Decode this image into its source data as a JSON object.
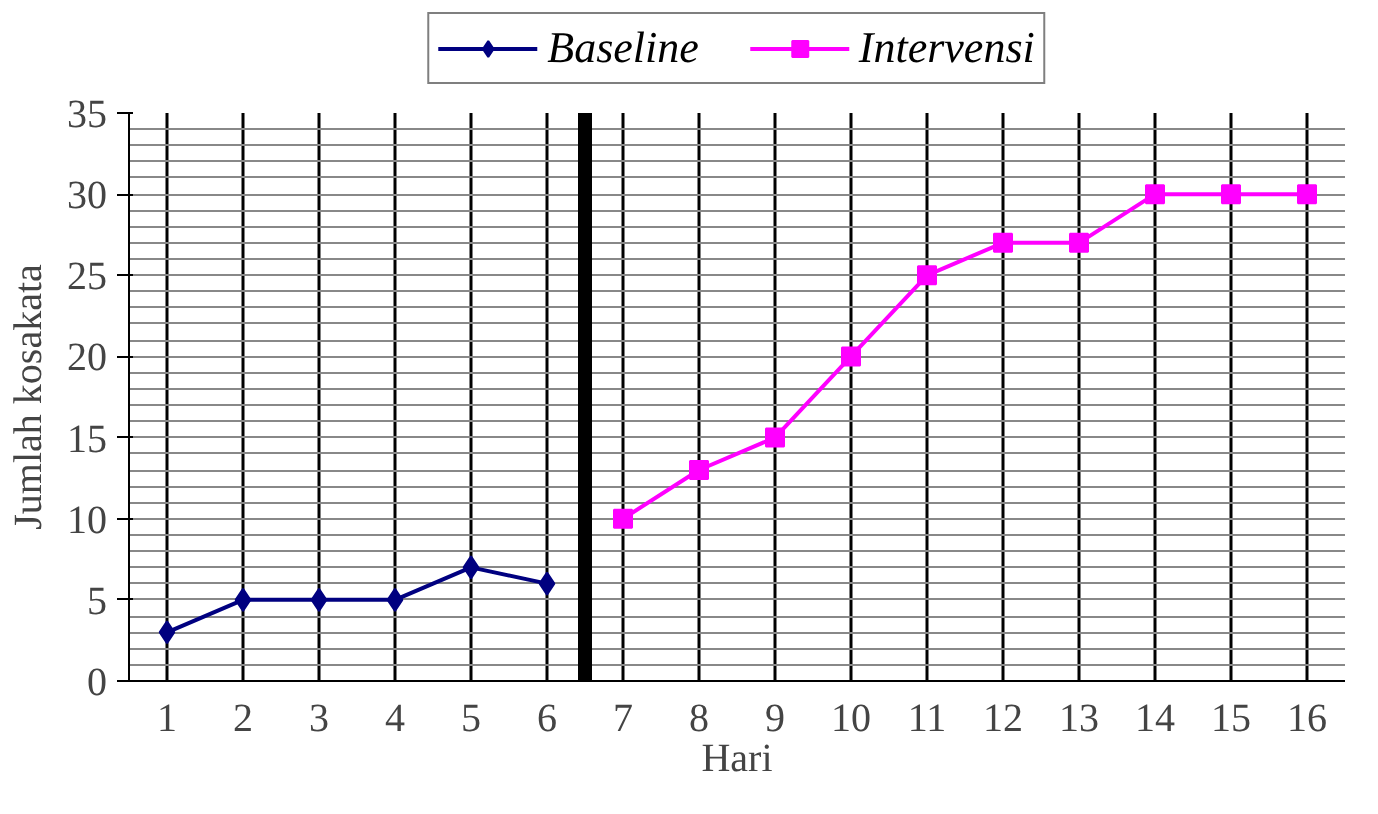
{
  "chart_data": {
    "type": "line",
    "xlabel": "Hari",
    "ylabel": "Jumlah kosakata",
    "xlim": [
      0.5,
      16.5
    ],
    "xticks": [
      1,
      2,
      3,
      4,
      5,
      6,
      7,
      8,
      9,
      10,
      11,
      12,
      13,
      14,
      15,
      16
    ],
    "ylim": [
      0,
      35
    ],
    "yticks": [
      0,
      5,
      10,
      15,
      20,
      25,
      30,
      35
    ],
    "grid": true,
    "legend": "top",
    "ref_lines": [
      {
        "axis": "x",
        "value": 6.5,
        "color": "#000000"
      }
    ],
    "series": [
      {
        "name": "Baseline",
        "color": "#000080",
        "marker": "diamond",
        "x": [
          1,
          2,
          3,
          4,
          5,
          6
        ],
        "values": [
          3,
          5,
          5,
          5,
          7,
          6
        ]
      },
      {
        "name": "Intervensi",
        "color": "#ff00ff",
        "marker": "square",
        "x": [
          7,
          8,
          9,
          10,
          11,
          12,
          13,
          14,
          15,
          16
        ],
        "values": [
          10,
          13,
          15,
          20,
          25,
          27,
          27,
          30,
          30,
          30
        ]
      }
    ]
  }
}
